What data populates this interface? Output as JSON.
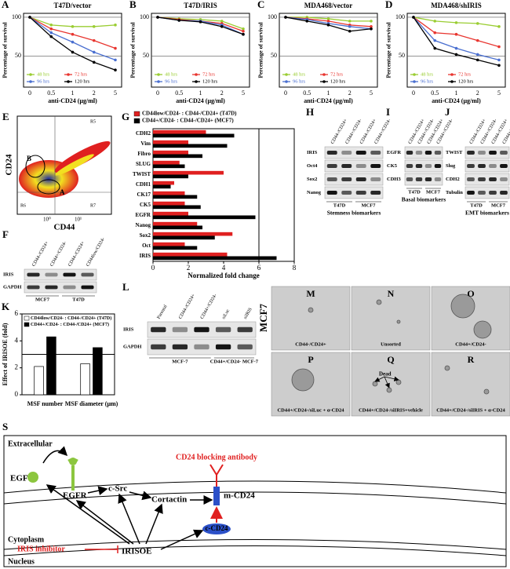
{
  "chart_data": [
    {
      "panel_label": "A",
      "type": "line",
      "title": "T47D/vector",
      "y_label": "Percentage of survival",
      "x_label": "anti-CD24 (μg/ml)",
      "categories": [
        "0",
        "0.5",
        "1",
        "2",
        "5"
      ],
      "ylim": [
        10,
        105
      ],
      "yticks": [
        50,
        100
      ],
      "grid": true,
      "series": [
        {
          "name": "48 hrs",
          "color": "#9acd32",
          "values": [
            100,
            90,
            88,
            88,
            90
          ]
        },
        {
          "name": "72 hrs",
          "color": "#e8352f",
          "values": [
            100,
            85,
            78,
            70,
            60
          ]
        },
        {
          "name": "96 hrs",
          "color": "#4a6fd0",
          "values": [
            100,
            80,
            68,
            55,
            45
          ]
        },
        {
          "name": "120 hrs",
          "color": "#000000",
          "values": [
            100,
            75,
            55,
            42,
            32
          ]
        }
      ]
    },
    {
      "panel_label": "B",
      "type": "line",
      "title": "T47D/IRIS",
      "y_label": "Percentage of survival",
      "x_label": "anti-CD24 (μg/ml)",
      "categories": [
        "0",
        "0.5",
        "1",
        "2",
        "5"
      ],
      "ylim": [
        10,
        105
      ],
      "yticks": [
        50,
        100
      ],
      "grid": true,
      "series": [
        {
          "name": "48 hrs",
          "color": "#9acd32",
          "values": [
            100,
            98,
            97,
            95,
            85
          ]
        },
        {
          "name": "72 hrs",
          "color": "#e8352f",
          "values": [
            100,
            97,
            95,
            92,
            82
          ]
        },
        {
          "name": "96 hrs",
          "color": "#4a6fd0",
          "values": [
            100,
            96,
            95,
            90,
            78
          ]
        },
        {
          "name": "120 hrs",
          "color": "#000000",
          "values": [
            100,
            96,
            94,
            88,
            78
          ]
        }
      ]
    },
    {
      "panel_label": "C",
      "type": "line",
      "title": "MDA468/vector",
      "y_label": "Percentage of survival",
      "x_label": "anti-CD24 (μg/ml)",
      "categories": [
        "0",
        "0.5",
        "1",
        "2",
        "5"
      ],
      "ylim": [
        10,
        105
      ],
      "yticks": [
        50,
        100
      ],
      "grid": true,
      "series": [
        {
          "name": "48 hrs",
          "color": "#9acd32",
          "values": [
            100,
            100,
            98,
            95,
            95
          ]
        },
        {
          "name": "72 hrs",
          "color": "#e8352f",
          "values": [
            100,
            98,
            95,
            90,
            88
          ]
        },
        {
          "name": "96 hrs",
          "color": "#4a6fd0",
          "values": [
            100,
            97,
            92,
            88,
            85
          ]
        },
        {
          "name": "120 hrs",
          "color": "#000000",
          "values": [
            100,
            95,
            90,
            82,
            85
          ]
        }
      ]
    },
    {
      "panel_label": "D",
      "type": "line",
      "title": "MDA468/shIRIS",
      "y_label": "Percentage of survival",
      "x_label": "anti-CD24 (μg/ml)",
      "categories": [
        "0",
        "0.5",
        "1",
        "2",
        "5"
      ],
      "ylim": [
        10,
        105
      ],
      "yticks": [
        50,
        100
      ],
      "grid": true,
      "series": [
        {
          "name": "48 hrs",
          "color": "#9acd32",
          "values": [
            100,
            95,
            93,
            92,
            88
          ]
        },
        {
          "name": "72 hrs",
          "color": "#e8352f",
          "values": [
            100,
            80,
            78,
            70,
            62
          ]
        },
        {
          "name": "96 hrs",
          "color": "#4a6fd0",
          "values": [
            100,
            70,
            60,
            52,
            45
          ]
        },
        {
          "name": "120 hrs",
          "color": "#000000",
          "values": [
            100,
            60,
            52,
            45,
            38
          ]
        }
      ]
    },
    {
      "panel_label": "G",
      "type": "bar",
      "orientation": "horizontal",
      "x_label": "Normalized fold change",
      "categories": [
        "CDH2",
        "Vim",
        "Fibro",
        "SLUG",
        "TWIST",
        "CDH1",
        "CK17",
        "CK5",
        "EGFR",
        "Nanog",
        "Sox2",
        "Oct",
        "IRIS"
      ],
      "xlim": [
        0,
        8
      ],
      "xticks": [
        0,
        2,
        4,
        6,
        8
      ],
      "ref_line": 6,
      "series": [
        {
          "name": "CD44low/CD24- : CD44-/CD24+ (T47D)",
          "color": "#e02020",
          "values": [
            3.0,
            2.0,
            2.0,
            1.5,
            4.0,
            1.2,
            1.8,
            1.8,
            2.0,
            2.5,
            4.5,
            1.8,
            4.2
          ]
        },
        {
          "name": "CD44+/CD24- : CD44-/CD24+ (MCF7)",
          "color": "#000000",
          "values": [
            4.6,
            4.2,
            2.8,
            1.8,
            2.0,
            1.0,
            2.5,
            2.7,
            5.8,
            2.8,
            3.5,
            2.5,
            7.0
          ]
        }
      ]
    },
    {
      "panel_label": "K",
      "type": "bar",
      "y_label": "Effect of IRISOE (fold)",
      "categories": [
        "MSF number",
        "MSF diameter (μm)"
      ],
      "ylim": [
        0,
        6
      ],
      "yticks": [
        0,
        2,
        4,
        6
      ],
      "ref_line": 3,
      "series": [
        {
          "name": "CD44low/CD24- : CD44-/CD24+ (T47D)",
          "color": "#ffffff",
          "values": [
            2.1,
            2.3
          ]
        },
        {
          "name": "CD44+/CD24- : CD44-/CD24+ (MCF7)",
          "color": "#000000",
          "values": [
            4.3,
            3.5
          ]
        }
      ]
    }
  ],
  "panels": {
    "E": {
      "label": "E",
      "y_axis": "CD24",
      "x_axis": "CD44",
      "x_ticks": [
        "10⁰",
        "10¹"
      ],
      "gates": [
        "R5",
        "B",
        "A",
        "R6",
        "R7"
      ]
    },
    "F": {
      "label": "F",
      "lanes": [
        "CD44-/CD24+",
        "CD44+/CD24-",
        "CD44-/CD24+",
        "CD44low/CD24-"
      ],
      "rows": [
        "IRIS",
        "GAPDH"
      ],
      "groups": [
        "MCF7",
        "T47D"
      ]
    },
    "H": {
      "label": "H",
      "lanes": [
        "CD44-/CD24+",
        "CD44+/CD24-",
        "CD44-/CD24+",
        "CD44+/CD24-"
      ],
      "rows": [
        "IRIS",
        "Oct4",
        "Sox2",
        "Nanog"
      ],
      "groups": [
        "T47D",
        "MCF7"
      ],
      "caption": "Stemness biomarkers"
    },
    "I": {
      "label": "I",
      "lanes": [
        "CD44-/CD24+",
        "CD44+/CD24-",
        "CD44-/CD24+",
        "CD44+/CD24-"
      ],
      "rows": [
        "EGFR",
        "CK5",
        "CDH3"
      ],
      "groups": [
        "T47D",
        "MCF7"
      ],
      "caption": "Basal biomarkers"
    },
    "J": {
      "label": "J",
      "lanes": [
        "CD44-/CD24+",
        "CD44+/CD24-",
        "CD44-/CD24+",
        "CD44+/CD24-"
      ],
      "rows": [
        "TWIST",
        "Slug",
        "CDH2",
        "Tubulin"
      ],
      "groups": [
        "T47D",
        "MCF7"
      ],
      "caption": "EMT biomarkers"
    },
    "L": {
      "label": "L",
      "lanes": [
        "Parental",
        "CD44-/CD24+",
        "CD44+/CD24-",
        "siLuc",
        "siIRIS"
      ],
      "rows": [
        "IRIS",
        "GAPDH"
      ],
      "groups": [
        "MCF-7",
        "CD44+/CD24- MCF-7"
      ]
    },
    "spheres": {
      "side_label": "MCF7",
      "note": "Dead",
      "images": [
        {
          "label": "M",
          "caption": "CD44-/CD24+"
        },
        {
          "label": "N",
          "caption": "Unsorted"
        },
        {
          "label": "O",
          "caption": "CD44+/CD24-"
        },
        {
          "label": "P",
          "caption": "CD44+/CD24-/siLuc + α-CD24"
        },
        {
          "label": "Q",
          "caption": "CD44+/CD24-/siIRIS+vehicle"
        },
        {
          "label": "R",
          "caption": "CD44+/CD24-/siIRIS + α-CD24"
        }
      ]
    },
    "S": {
      "label": "S",
      "regions": [
        "Extracellular",
        "Cytoplasm",
        "Nucleus"
      ],
      "nodes": [
        "EGF",
        "EGFR",
        "c-Src",
        "Cortactin",
        "m-CD24",
        "c-CD24",
        "IRISOE",
        "IRIS inhibitor",
        "CD24 blocking antibody"
      ]
    }
  }
}
